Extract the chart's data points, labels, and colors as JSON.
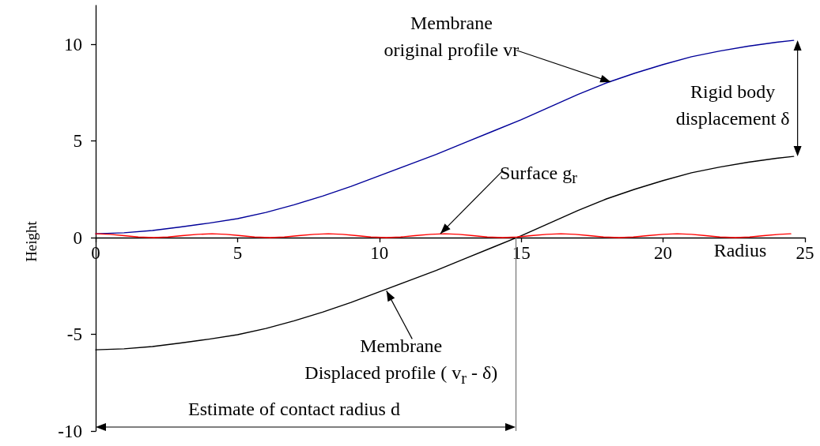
{
  "chart_data": {
    "type": "line",
    "xlabel": "Radius",
    "ylabel": "Height",
    "xlim": [
      0,
      25
    ],
    "ylim": [
      -10,
      12
    ],
    "xticks": [
      0,
      5,
      10,
      15,
      20,
      25
    ],
    "yticks": [
      -10,
      -5,
      0,
      5,
      10
    ],
    "marker": "none",
    "line_style": "solid",
    "series": [
      {
        "color": "#000099",
        "x": [
          0,
          1,
          2,
          3,
          4,
          5,
          6,
          7,
          8,
          9,
          10,
          11,
          12,
          13,
          14,
          15,
          16,
          17,
          18,
          19,
          20,
          21,
          22,
          23,
          24,
          24.6
        ],
        "values": [
          0.2,
          0.25,
          0.37,
          0.55,
          0.75,
          0.98,
          1.3,
          1.7,
          2.15,
          2.65,
          3.2,
          3.75,
          4.3,
          4.9,
          5.5,
          6.1,
          6.75,
          7.4,
          8.0,
          8.5,
          8.95,
          9.35,
          9.65,
          9.9,
          10.1,
          10.2
        ]
      },
      {
        "color": "#000000",
        "x": [
          0,
          1,
          2,
          3,
          4,
          5,
          6,
          7,
          8,
          9,
          10,
          11,
          12,
          13,
          14,
          15,
          16,
          17,
          18,
          19,
          20,
          21,
          22,
          23,
          24,
          24.6
        ],
        "values": [
          -5.8,
          -5.75,
          -5.63,
          -5.45,
          -5.25,
          -5.02,
          -4.7,
          -4.3,
          -3.85,
          -3.35,
          -2.8,
          -2.25,
          -1.7,
          -1.1,
          -0.5,
          0.1,
          0.75,
          1.4,
          2.0,
          2.5,
          2.95,
          3.35,
          3.65,
          3.9,
          4.1,
          4.2
        ]
      },
      {
        "color": "#ff0000",
        "x": [
          0,
          0.5,
          1,
          1.5,
          2.05,
          2.55,
          3.05,
          3.6,
          4.1,
          4.6,
          5.1,
          5.6,
          6.15,
          6.65,
          7.15,
          7.7,
          8.2,
          8.7,
          9.2,
          9.7,
          10.25,
          10.75,
          11.25,
          11.8,
          12.3,
          12.8,
          13.3,
          13.8,
          14.35,
          14.85,
          15.35,
          15.9,
          16.4,
          16.9,
          17.4,
          17.9,
          18.45,
          18.95,
          19.45,
          20,
          20.5,
          21,
          21.5,
          22,
          22.55,
          23.05,
          23.55,
          24.1,
          24.5
        ],
        "values": [
          0.2,
          0.17,
          0.1,
          0.03,
          0,
          0.03,
          0.1,
          0.17,
          0.2,
          0.17,
          0.1,
          0.03,
          0,
          0.03,
          0.1,
          0.17,
          0.2,
          0.17,
          0.1,
          0.03,
          0,
          0.03,
          0.1,
          0.17,
          0.2,
          0.17,
          0.1,
          0.03,
          0,
          0.03,
          0.1,
          0.17,
          0.2,
          0.17,
          0.1,
          0.03,
          0,
          0.03,
          0.1,
          0.17,
          0.2,
          0.17,
          0.1,
          0.03,
          0,
          0.03,
          0.1,
          0.17,
          0.2
        ]
      }
    ],
    "ref_lines": [
      {
        "axis": "x",
        "value": 14.8,
        "color": "#808080"
      }
    ],
    "annotations": [
      {
        "text": "Membrane\noriginal profile vr",
        "x": 18.15,
        "y": 8.05
      },
      "Rigid body\ndisplacement δ",
      {
        "text": "Surface g$_{r}$",
        "x": 12.15,
        "y": 0.2
      },
      {
        "text": "Membrane\nDisplaced profile ( v$_{r}$ - δ)",
        "x": 10.25,
        "y": -2.75
      },
      "Estimate of contact radius d"
    ]
  }
}
